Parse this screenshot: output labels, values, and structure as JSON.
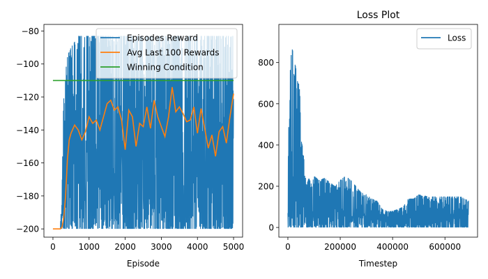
{
  "chart_data": [
    {
      "type": "line",
      "title": "",
      "xlabel": "Episode",
      "ylabel": "",
      "xlim": [
        -250,
        5250
      ],
      "ylim": [
        -205,
        -76
      ],
      "xticks": [
        0,
        1000,
        2000,
        3000,
        4000,
        5000
      ],
      "yticks": [
        -200,
        -180,
        -160,
        -140,
        -120,
        -100,
        -80
      ],
      "grid": false,
      "legend_position": "top-right",
      "series": [
        {
          "name": "Episodes Reward",
          "color": "#1f77b4",
          "envelope": {
            "x": [
              0,
              200,
              250,
              300,
              400,
              500,
              700,
              1000,
              1500,
              2000,
              2500,
              3000,
              3500,
              4000,
              4500,
              5000
            ],
            "min": [
              -200,
              -200,
              -200,
              -200,
              -200,
              -200,
              -200,
              -200,
              -200,
              -200,
              -200,
              -200,
              -200,
              -200,
              -200,
              -200
            ],
            "max": [
              -200,
              -200,
              -175,
              -115,
              -95,
              -90,
              -83,
              -83,
              -83,
              -83,
              -83,
              -83,
              -83,
              -83,
              -83,
              -83
            ]
          }
        },
        {
          "name": "Avg Last 100 Rewards",
          "color": "#ff7f0e",
          "x": [
            0,
            200,
            250,
            300,
            350,
            400,
            450,
            500,
            600,
            700,
            800,
            900,
            1000,
            1100,
            1200,
            1300,
            1400,
            1500,
            1600,
            1700,
            1800,
            1900,
            2000,
            2100,
            2200,
            2300,
            2400,
            2500,
            2600,
            2700,
            2800,
            2900,
            3000,
            3100,
            3200,
            3300,
            3400,
            3500,
            3600,
            3700,
            3800,
            3900,
            4000,
            4100,
            4200,
            4300,
            4400,
            4500,
            4600,
            4700,
            4800,
            4900,
            5000
          ],
          "y": [
            -200,
            -200,
            -199,
            -193,
            -180,
            -158,
            -146,
            -142,
            -137,
            -140,
            -146,
            -141,
            -132,
            -136,
            -134,
            -140,
            -132,
            -124,
            -122,
            -128,
            -126,
            -134,
            -152,
            -128,
            -132,
            -150,
            -136,
            -138,
            -126,
            -139,
            -122,
            -132,
            -138,
            -144,
            -132,
            -114,
            -129,
            -126,
            -130,
            -135,
            -134,
            -126,
            -142,
            -127,
            -139,
            -151,
            -143,
            -156,
            -141,
            -138,
            -148,
            -132,
            -118
          ]
        },
        {
          "name": "Winning Condition",
          "color": "#2ca02c",
          "x": [
            0,
            5000
          ],
          "y": [
            -110,
            -110
          ]
        }
      ]
    },
    {
      "type": "line",
      "title": "Loss Plot",
      "xlabel": "Timestep",
      "ylabel": "",
      "xlim": [
        -34500,
        724500
      ],
      "ylim": [
        -47,
        985
      ],
      "xticks": [
        0,
        200000,
        400000,
        600000
      ],
      "yticks": [
        0,
        200,
        400,
        600,
        800
      ],
      "grid": false,
      "legend_position": "top-right",
      "series": [
        {
          "name": "Loss",
          "color": "#1f77b4",
          "envelope": {
            "x": [
              0,
              5000,
              10000,
              15000,
              20000,
              25000,
              30000,
              35000,
              40000,
              45000,
              50000,
              55000,
              60000,
              65000,
              70000,
              80000,
              90000,
              100000,
              120000,
              140000,
              160000,
              180000,
              200000,
              220000,
              240000,
              260000,
              280000,
              300000,
              320000,
              340000,
              360000,
              380000,
              400000,
              420000,
              440000,
              460000,
              480000,
              500000,
              540000,
              580000,
              620000,
              660000,
              690000
            ],
            "min": [
              0,
              0,
              0,
              0,
              0,
              0,
              0,
              0,
              0,
              0,
              0,
              0,
              0,
              0,
              0,
              0,
              0,
              0,
              0,
              0,
              0,
              0,
              0,
              0,
              0,
              0,
              0,
              0,
              0,
              0,
              0,
              0,
              0,
              0,
              0,
              0,
              0,
              0,
              0,
              0,
              0,
              0,
              0
            ],
            "max": [
              280,
              840,
              750,
              940,
              820,
              800,
              780,
              720,
              700,
              690,
              430,
              400,
              350,
              280,
              200,
              240,
              210,
              250,
              230,
              240,
              220,
              200,
              230,
              250,
              230,
              200,
              170,
              160,
              140,
              130,
              90,
              80,
              80,
              90,
              100,
              140,
              140,
              160,
              150,
              150,
              150,
              150,
              130
            ]
          }
        }
      ]
    }
  ]
}
